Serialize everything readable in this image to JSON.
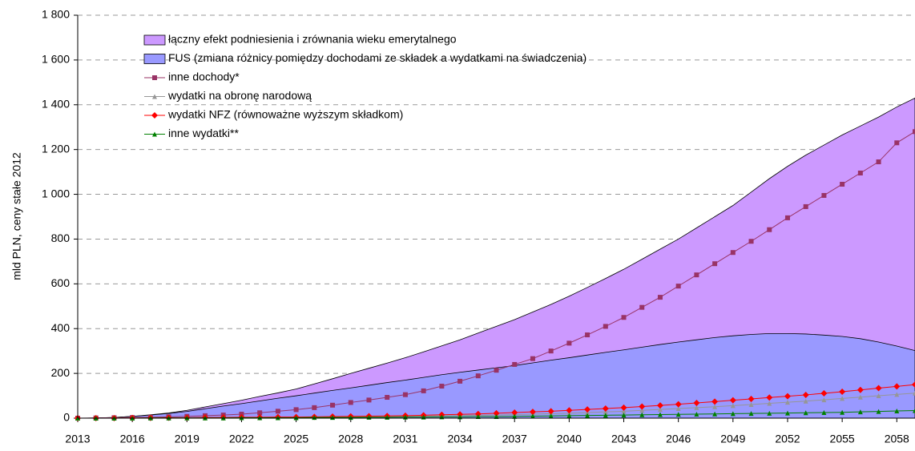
{
  "chart_data": {
    "type": "line",
    "y_label": "mld PLN, ceny stałe 2012",
    "x": [
      2013,
      2014,
      2015,
      2016,
      2017,
      2018,
      2019,
      2020,
      2021,
      2022,
      2023,
      2024,
      2025,
      2026,
      2027,
      2028,
      2029,
      2030,
      2031,
      2032,
      2033,
      2034,
      2035,
      2036,
      2037,
      2038,
      2039,
      2040,
      2041,
      2042,
      2043,
      2044,
      2045,
      2046,
      2047,
      2048,
      2049,
      2050,
      2051,
      2052,
      2053,
      2054,
      2055,
      2056,
      2057,
      2058,
      2059
    ],
    "xlim": [
      2013,
      2059
    ],
    "xticks": [
      2013,
      2016,
      2019,
      2022,
      2025,
      2028,
      2031,
      2034,
      2037,
      2040,
      2043,
      2046,
      2049,
      2052,
      2055,
      2058
    ],
    "ylim": [
      0,
      1800
    ],
    "yticks": [
      0,
      200,
      400,
      600,
      800,
      {
        "value": 1000,
        "label": "1 000"
      },
      {
        "value": 1200,
        "label": "1 200"
      },
      {
        "value": 1400,
        "label": "1 400"
      },
      {
        "value": 1600,
        "label": "1 600"
      },
      {
        "value": 1800,
        "label": "1 800"
      }
    ],
    "grid": true,
    "series": [
      {
        "name": "łączny efekt podniesienia i zrównania wieku emerytalnego",
        "type": "area",
        "color": "#cc99ff",
        "values": [
          0,
          1,
          3,
          8,
          15,
          23,
          35,
          50,
          65,
          80,
          97,
          113,
          130,
          153,
          176,
          200,
          223,
          246,
          270,
          296,
          323,
          350,
          380,
          410,
          440,
          474,
          508,
          545,
          584,
          624,
          665,
          710,
          755,
          800,
          850,
          900,
          950,
          1010,
          1070,
          1125,
          1175,
          1220,
          1265,
          1305,
          1345,
          1390,
          1430
        ]
      },
      {
        "name": "FUS (zmiana różnicy pomiędzy dochodami ze składek a wydatkami na świadczenia)",
        "type": "area",
        "color": "#9999ff",
        "values": [
          0,
          1,
          3,
          8,
          14,
          21,
          30,
          42,
          54,
          65,
          77,
          89,
          100,
          112,
          124,
          135,
          147,
          159,
          170,
          182,
          194,
          205,
          215,
          225,
          235,
          247,
          259,
          270,
          282,
          294,
          305,
          317,
          329,
          340,
          350,
          360,
          368,
          374,
          378,
          378,
          376,
          371,
          365,
          355,
          340,
          322,
          302
        ]
      },
      {
        "name": "inne dochody*",
        "type": "line",
        "marker": "square",
        "color": "#993366",
        "values": [
          0,
          1,
          2,
          3,
          4,
          6,
          8,
          11,
          14,
          18,
          24,
          31,
          38,
          47,
          58,
          70,
          81,
          93,
          105,
          122,
          143,
          165,
          189,
          214,
          240,
          266,
          300,
          335,
          372,
          410,
          450,
          495,
          540,
          590,
          640,
          690,
          740,
          790,
          842,
          895,
          945,
          995,
          1045,
          1095,
          1145,
          1230,
          1280
        ]
      },
      {
        "name": "wydatki na obronę narodową",
        "type": "line",
        "marker": "triangle",
        "color": "#969696",
        "values": [
          0,
          0,
          0,
          1,
          1,
          1,
          2,
          2,
          2,
          3,
          3,
          3,
          4,
          4,
          5,
          6,
          7,
          8,
          9,
          10,
          11,
          12,
          13,
          14,
          16,
          18,
          20,
          22,
          25,
          28,
          31,
          35,
          39,
          43,
          47,
          51,
          56,
          61,
          66,
          71,
          76,
          82,
          88,
          94,
          100,
          106,
          112
        ]
      },
      {
        "name": "wydatki NFZ (równoważne wyższym składkom)",
        "type": "line",
        "marker": "diamond",
        "color": "#ff0000",
        "values": [
          0,
          0,
          0,
          1,
          1,
          2,
          2,
          3,
          3,
          4,
          4,
          5,
          5,
          6,
          7,
          8,
          9,
          10,
          11,
          13,
          15,
          17,
          19,
          22,
          25,
          28,
          31,
          35,
          39,
          43,
          47,
          52,
          57,
          62,
          68,
          74,
          80,
          86,
          92,
          98,
          104,
          111,
          118,
          126,
          134,
          142,
          150
        ]
      },
      {
        "name": "inne wydatki**",
        "type": "line",
        "marker": "triangle",
        "color": "#008000",
        "values": [
          0,
          0,
          0,
          0,
          1,
          1,
          1,
          1,
          1,
          2,
          2,
          2,
          2,
          3,
          3,
          3,
          4,
          4,
          5,
          5,
          6,
          6,
          7,
          7,
          8,
          9,
          10,
          11,
          12,
          13,
          14,
          15,
          16,
          17,
          18,
          19,
          20,
          21,
          22,
          23,
          24,
          25,
          26,
          28,
          30,
          32,
          34
        ]
      }
    ]
  }
}
